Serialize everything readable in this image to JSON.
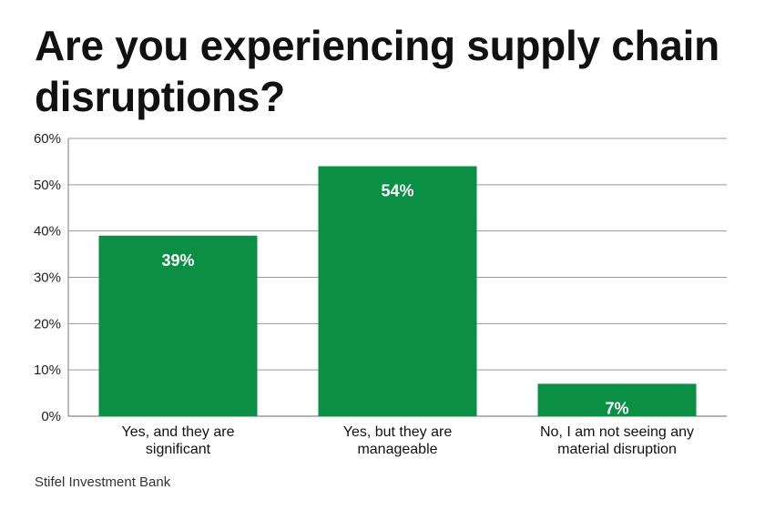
{
  "title": "Are you experiencing supply chain disruptions?",
  "source": "Stifel Investment Bank",
  "chart_data": {
    "type": "bar",
    "title": "Are you experiencing supply chain disruptions?",
    "categories": [
      [
        "Yes, and they are",
        "significant"
      ],
      [
        "Yes, but they are",
        "manageable"
      ],
      [
        "No, I am not seeing any",
        "material disruption"
      ]
    ],
    "values": [
      39,
      54,
      7
    ],
    "data_labels": [
      "39%",
      "54%",
      "7%"
    ],
    "ylim": [
      0,
      60
    ],
    "yticks": [
      0,
      10,
      20,
      30,
      40,
      50,
      60
    ],
    "ytick_labels": [
      "0%",
      "10%",
      "20%",
      "30%",
      "40%",
      "50%",
      "60%"
    ],
    "xlabel": "",
    "ylabel": "",
    "grid": true,
    "legend": "none",
    "bar_color": "#0a8f44",
    "label_color": "#ffffff",
    "grid_color": "#9a9a9a"
  }
}
